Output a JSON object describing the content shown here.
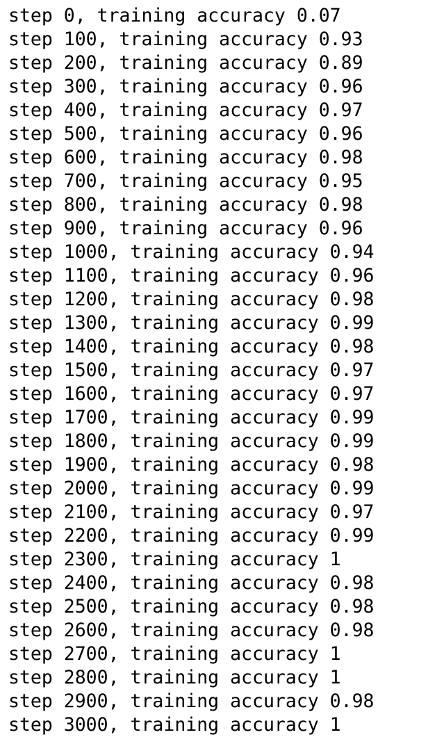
{
  "console": {
    "lines": [
      "step 0, training accuracy 0.07",
      "step 100, training accuracy 0.93",
      "step 200, training accuracy 0.89",
      "step 300, training accuracy 0.96",
      "step 400, training accuracy 0.97",
      "step 500, training accuracy 0.96",
      "step 600, training accuracy 0.98",
      "step 700, training accuracy 0.95",
      "step 800, training accuracy 0.98",
      "step 900, training accuracy 0.96",
      "step 1000, training accuracy 0.94",
      "step 1100, training accuracy 0.96",
      "step 1200, training accuracy 0.98",
      "step 1300, training accuracy 0.99",
      "step 1400, training accuracy 0.98",
      "step 1500, training accuracy 0.97",
      "step 1600, training accuracy 0.97",
      "step 1700, training accuracy 0.99",
      "step 1800, training accuracy 0.99",
      "step 1900, training accuracy 0.98",
      "step 2000, training accuracy 0.99",
      "step 2100, training accuracy 0.97",
      "step 2200, training accuracy 0.99",
      "step 2300, training accuracy 1",
      "step 2400, training accuracy 0.98",
      "step 2500, training accuracy 0.98",
      "step 2600, training accuracy 0.98",
      "step 2700, training accuracy 1",
      "step 2800, training accuracy 1",
      "step 2900, training accuracy 0.98",
      "step 3000, training accuracy 1"
    ]
  }
}
